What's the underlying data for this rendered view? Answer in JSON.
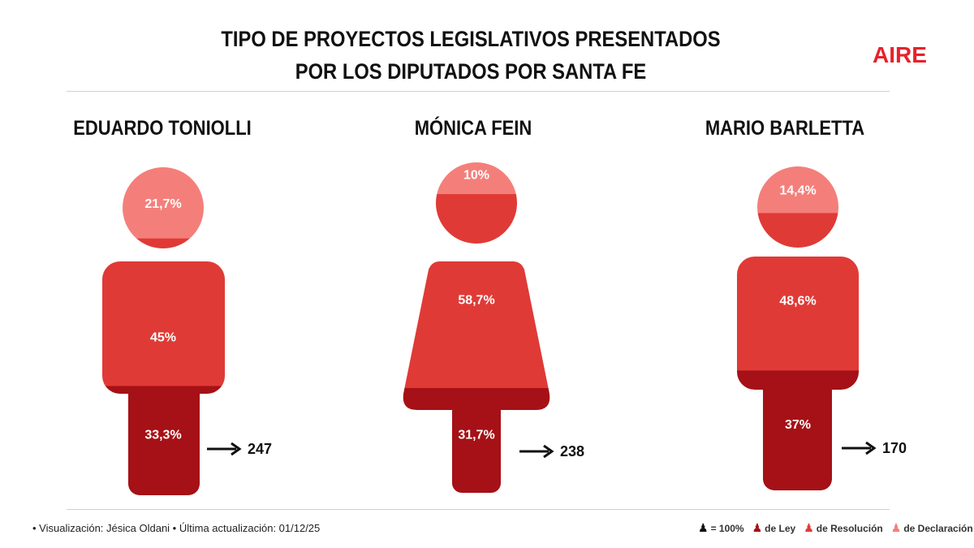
{
  "title": [
    "TIPO DE PROYECTOS LEGISLATIVOS PRESENTADOS",
    "POR LOS DIPUTADOS POR SANTA FE"
  ],
  "logo": "AIRE",
  "colors": {
    "ley": "#a51116",
    "resolucion": "#e03a36",
    "declaracion": "#f47f7a",
    "brand": "#e8212a"
  },
  "chart_data": {
    "type": "pictogram-stacked",
    "title": "TIPO DE PROYECTOS LEGISLATIVOS PRESENTADOS POR LOS DIPUTADOS POR SANTA FE",
    "categories": [
      "de Ley",
      "de Resolución",
      "de Declaración"
    ],
    "people": [
      {
        "name": "EDUARDO TONIOLLI",
        "figure": "male",
        "ley": 33.3,
        "resolucion": 45,
        "declaracion": 21.7,
        "labels": [
          "33,3%",
          "45%",
          "21,7%"
        ],
        "total": "247"
      },
      {
        "name": "MÓNICA FEIN",
        "figure": "female",
        "ley": 31.7,
        "resolucion": 58.7,
        "declaracion": 10,
        "labels": [
          "31,7%",
          "58,7%",
          "10%"
        ],
        "total": "238"
      },
      {
        "name": "MARIO BARLETTA",
        "figure": "male",
        "ley": 37,
        "resolucion": 48.6,
        "declaracion": 14.4,
        "labels": [
          "37%",
          "48,6%",
          "14,4%"
        ],
        "total": "170"
      }
    ]
  },
  "footer": "• Visualización: Jésica Oldani  • Última actualización: 01/12/25",
  "legend": {
    "total": "= 100%",
    "ley": "de Ley",
    "resolucion": "de Resolución",
    "declaracion": "de Declaración"
  }
}
